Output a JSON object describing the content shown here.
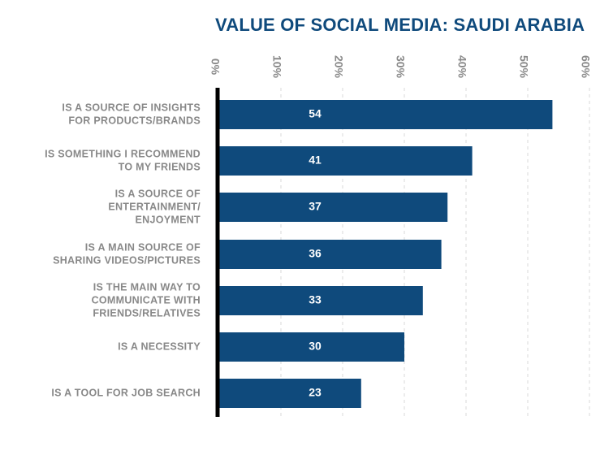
{
  "chart_data": {
    "type": "bar",
    "orientation": "horizontal",
    "title": "VALUE OF SOCIAL MEDIA: SAUDI ARABIA",
    "categories": [
      [
        "IS A SOURCE OF INSIGHTS",
        "FOR PRODUCTS/BRANDS"
      ],
      [
        "IS SOMETHING I RECOMMEND",
        "TO MY FRIENDS"
      ],
      [
        "IS A SOURCE OF",
        "ENTERTAINMENT/",
        "ENJOYMENT"
      ],
      [
        "IS A MAIN SOURCE OF",
        "SHARING VIDEOS/PICTURES"
      ],
      [
        "IS THE MAIN WAY TO",
        "COMMUNICATE WITH",
        "FRIENDS/RELATIVES"
      ],
      [
        "IS A NECESSITY"
      ],
      [
        "IS A TOOL FOR JOB SEARCH"
      ]
    ],
    "values": [
      54,
      41,
      37,
      36,
      33,
      30,
      23
    ],
    "xlim": [
      0,
      60
    ],
    "ticks": [
      0,
      10,
      20,
      30,
      40,
      50,
      60
    ],
    "tick_labels": [
      "0%",
      "10%",
      "20%",
      "30%",
      "40%",
      "50%",
      "60%"
    ],
    "axis_position": "top",
    "grid": true,
    "bar_color": "#0f4a7c",
    "axis_color": "#000000",
    "title_color": "#0f4a7c"
  }
}
